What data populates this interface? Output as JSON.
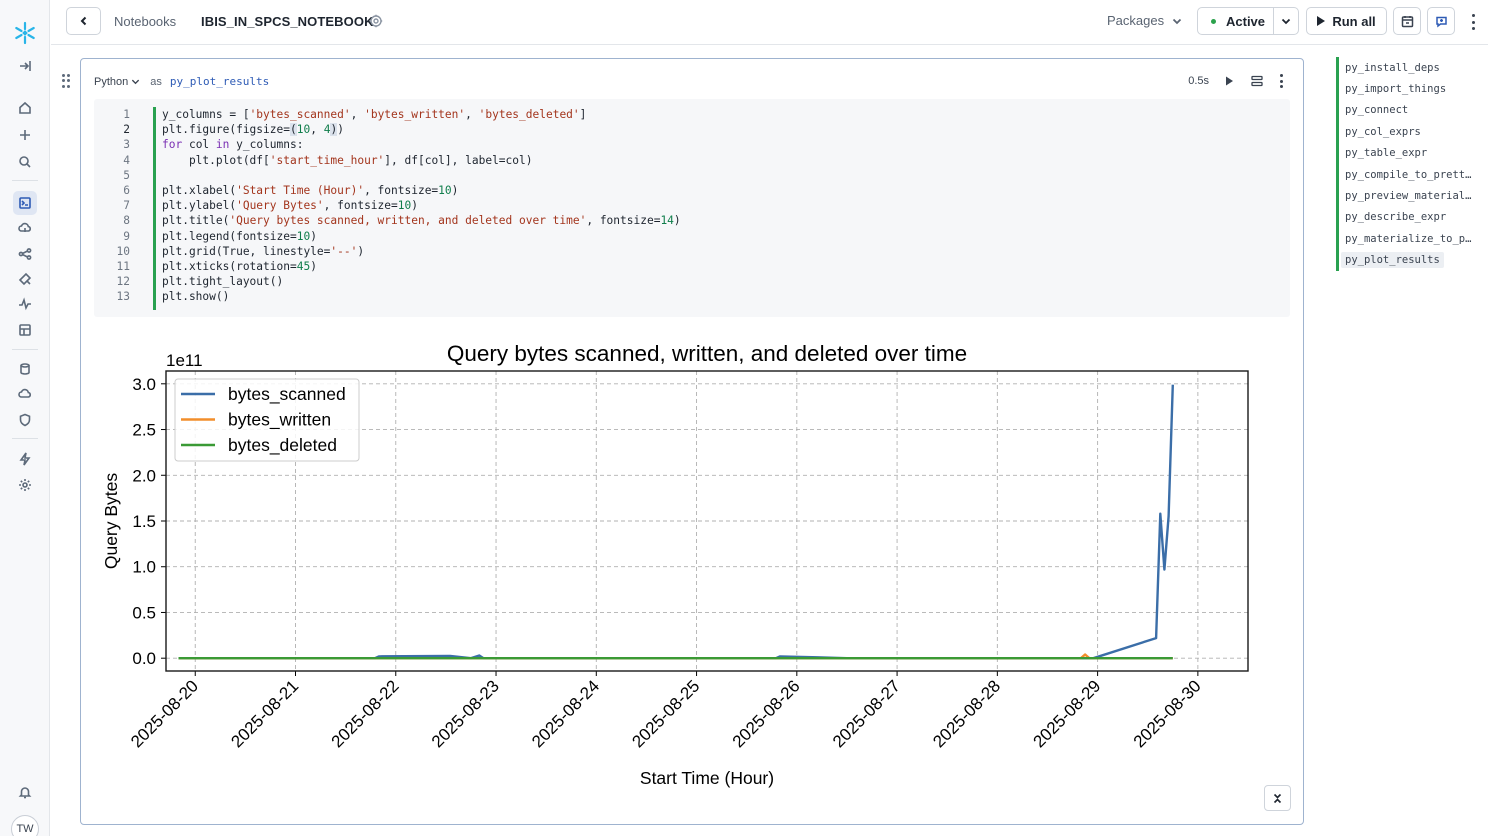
{
  "app": {
    "user_initials": "TW",
    "colors": {
      "accent": "#2e5bb5",
      "status_active": "#2ba24c",
      "cell_bar": "#29a150"
    }
  },
  "rail": {
    "icons": [
      "snowflake-logo",
      "expand-icon",
      "home-icon",
      "plus-icon",
      "search-icon",
      "projects-icon",
      "data-icon",
      "ai-ml-icon",
      "governance-icon",
      "monitoring-icon",
      "marketplace-icon",
      "database-icon",
      "admin-icon",
      "shield-icon",
      "bolt-icon",
      "gear-icon",
      "bell-icon"
    ]
  },
  "topbar": {
    "breadcrumb": "Notebooks",
    "notebook_title": "IBIS_IN_SPCS_NOTEBOOK",
    "packages_label": "Packages",
    "status_label": "Active",
    "run_all_label": "Run all"
  },
  "cell": {
    "language": "Python",
    "as_label": "as",
    "name": "py_plot_results",
    "elapsed": "0.5s",
    "line_numbers": [
      "1",
      "2",
      "3",
      "4",
      "5",
      "6",
      "7",
      "8",
      "9",
      "10",
      "11",
      "12",
      "13"
    ]
  },
  "outline": {
    "items": [
      "py_install_deps",
      "py_import_things",
      "py_connect",
      "py_col_exprs",
      "py_table_expr",
      "py_compile_to_pretty_sql",
      "py_preview_materialized",
      "py_describe_expr",
      "py_materialize_to_pandas",
      "py_plot_results"
    ],
    "selected_index": 9
  },
  "chart_data": {
    "type": "line",
    "title": "Query bytes scanned, written, and deleted over time",
    "xlabel": "Start Time (Hour)",
    "ylabel": "Query Bytes",
    "y_offset_label": "1e11",
    "xlim": [
      "2025-08-19T17:00",
      "2025-08-30T12:00"
    ],
    "ylim": [
      -0.14,
      3.14
    ],
    "y_ticks": [
      "0.0",
      "0.5",
      "1.0",
      "1.5",
      "2.0",
      "2.5",
      "3.0"
    ],
    "x_ticks": [
      "2025-08-20",
      "2025-08-21",
      "2025-08-22",
      "2025-08-23",
      "2025-08-24",
      "2025-08-25",
      "2025-08-26",
      "2025-08-27",
      "2025-08-28",
      "2025-08-29",
      "2025-08-30"
    ],
    "grid": true,
    "legend_position": "upper-left",
    "series": [
      {
        "name": "bytes_scanned",
        "color": "#3b6ea8",
        "points": [
          [
            "2025-08-19T20:00",
            0
          ],
          [
            "2025-08-21T19:00",
            0
          ],
          [
            "2025-08-21T20:00",
            0.02
          ],
          [
            "2025-08-22T13:00",
            0.025
          ],
          [
            "2025-08-22T18:00",
            0
          ],
          [
            "2025-08-22T20:00",
            0.03
          ],
          [
            "2025-08-22T21:00",
            0
          ],
          [
            "2025-08-25T19:00",
            0
          ],
          [
            "2025-08-25T20:00",
            0.02
          ],
          [
            "2025-08-26T05:00",
            0.01
          ],
          [
            "2025-08-26T12:00",
            0
          ],
          [
            "2025-08-28T23:00",
            0
          ],
          [
            "2025-08-29T14:00",
            0.22
          ],
          [
            "2025-08-29T15:00",
            1.58
          ],
          [
            "2025-08-29T16:00",
            0.97
          ],
          [
            "2025-08-29T17:00",
            1.55
          ],
          [
            "2025-08-29T18:00",
            2.99
          ]
        ]
      },
      {
        "name": "bytes_written",
        "color": "#f28e2b",
        "points": [
          [
            "2025-08-19T20:00",
            0
          ],
          [
            "2025-08-28T20:00",
            0
          ],
          [
            "2025-08-28T21:00",
            0.04
          ],
          [
            "2025-08-28T22:00",
            0
          ],
          [
            "2025-08-29T18:00",
            0
          ]
        ]
      },
      {
        "name": "bytes_deleted",
        "color": "#3a9a35",
        "points": [
          [
            "2025-08-19T20:00",
            0
          ],
          [
            "2025-08-29T18:00",
            0
          ]
        ]
      }
    ]
  }
}
